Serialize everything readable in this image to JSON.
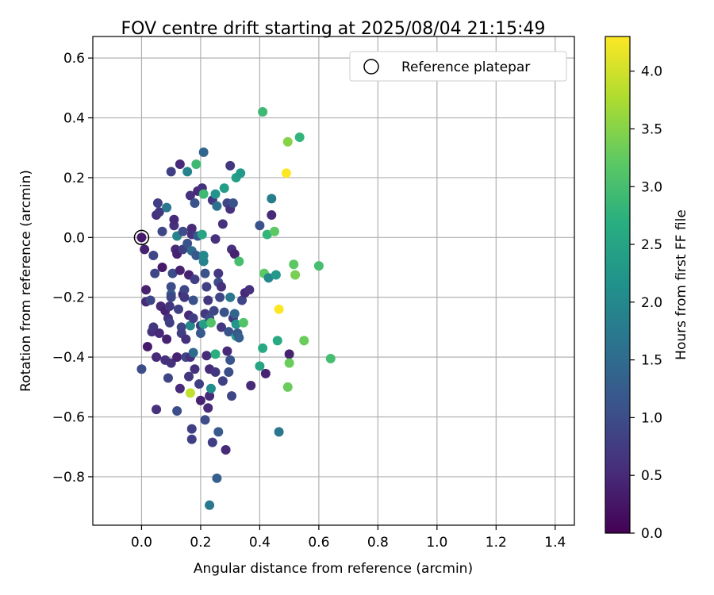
{
  "chart_data": {
    "type": "scatter",
    "title": "FOV centre drift starting at 2025/08/04 21:15:49",
    "xlabel": "Angular distance from reference (arcmin)",
    "ylabel": "Rotation from reference (arcmin)",
    "xlim": [
      -0.165,
      1.465
    ],
    "ylim": [
      -0.962,
      0.672
    ],
    "x_ticks": [
      0.0,
      0.2,
      0.4,
      0.6,
      0.8,
      1.0,
      1.2,
      1.4
    ],
    "x_tick_labels": [
      "0.0",
      "0.2",
      "0.4",
      "0.6",
      "0.8",
      "1.0",
      "1.2",
      "1.4"
    ],
    "y_ticks": [
      -0.8,
      -0.6,
      -0.4,
      -0.2,
      0.0,
      0.2,
      0.4,
      0.6
    ],
    "y_tick_labels": [
      "−0.8",
      "−0.6",
      "−0.4",
      "−0.2",
      "0.0",
      "0.2",
      "0.4",
      "0.6"
    ],
    "grid": true,
    "legend": {
      "position": "top-right",
      "entries": [
        "Reference platepar"
      ]
    },
    "colorbar": {
      "label": "Hours from first FF file",
      "range": [
        0.0,
        4.3
      ],
      "ticks": [
        0.0,
        0.5,
        1.0,
        1.5,
        2.0,
        2.5,
        3.0,
        3.5,
        4.0
      ],
      "tick_labels": [
        "0.0",
        "0.5",
        "1.0",
        "1.5",
        "2.0",
        "2.5",
        "3.0",
        "3.5",
        "4.0"
      ],
      "colormap": "viridis"
    },
    "reference_point": {
      "x": 0.0,
      "y": 0.0
    },
    "points": [
      [
        0.0,
        0.0,
        0.3
      ],
      [
        0.01,
        -0.04,
        0.4
      ],
      [
        0.0,
        -0.44,
        1.0
      ],
      [
        0.015,
        -0.175,
        0.4
      ],
      [
        0.015,
        -0.215,
        0.5
      ],
      [
        0.02,
        -0.365,
        0.3
      ],
      [
        0.03,
        -0.21,
        0.9
      ],
      [
        0.035,
        -0.315,
        0.6
      ],
      [
        0.04,
        -0.3,
        0.7
      ],
      [
        0.04,
        -0.06,
        0.9
      ],
      [
        0.045,
        -0.12,
        0.9
      ],
      [
        0.05,
        -0.4,
        0.5
      ],
      [
        0.05,
        -0.575,
        0.6
      ],
      [
        0.05,
        0.075,
        0.6
      ],
      [
        0.055,
        0.115,
        0.8
      ],
      [
        0.06,
        -0.32,
        0.5
      ],
      [
        0.06,
        0.085,
        0.7
      ],
      [
        0.065,
        -0.23,
        0.5
      ],
      [
        0.07,
        -0.1,
        0.3
      ],
      [
        0.07,
        0.02,
        0.9
      ],
      [
        0.08,
        -0.245,
        0.4
      ],
      [
        0.08,
        -0.41,
        0.6
      ],
      [
        0.085,
        -0.34,
        0.4
      ],
      [
        0.085,
        0.1,
        1.7
      ],
      [
        0.09,
        -0.47,
        0.9
      ],
      [
        0.09,
        -0.27,
        0.6
      ],
      [
        0.095,
        -0.285,
        0.8
      ],
      [
        0.095,
        -0.23,
        0.7
      ],
      [
        0.1,
        -0.165,
        1.0
      ],
      [
        0.1,
        -0.19,
        1.2
      ],
      [
        0.1,
        -0.2,
        0.9
      ],
      [
        0.1,
        -0.42,
        0.6
      ],
      [
        0.1,
        0.22,
        0.8
      ],
      [
        0.105,
        -0.12,
        1.0
      ],
      [
        0.11,
        0.04,
        0.6
      ],
      [
        0.11,
        0.06,
        0.5
      ],
      [
        0.115,
        -0.04,
        0.5
      ],
      [
        0.12,
        -0.055,
        0.4
      ],
      [
        0.12,
        -0.4,
        0.4
      ],
      [
        0.12,
        0.005,
        1.9
      ],
      [
        0.12,
        -0.58,
        1.0
      ],
      [
        0.125,
        -0.24,
        0.8
      ],
      [
        0.13,
        -0.11,
        0.4
      ],
      [
        0.13,
        -0.505,
        0.5
      ],
      [
        0.13,
        0.245,
        0.5
      ],
      [
        0.135,
        -0.3,
        0.9
      ],
      [
        0.135,
        -0.32,
        0.8
      ],
      [
        0.14,
        -0.04,
        0.8
      ],
      [
        0.14,
        -0.19,
        0.4
      ],
      [
        0.14,
        0.02,
        1.0
      ],
      [
        0.145,
        -0.175,
        0.9
      ],
      [
        0.145,
        -0.2,
        0.7
      ],
      [
        0.15,
        -0.34,
        0.6
      ],
      [
        0.15,
        -0.4,
        0.9
      ],
      [
        0.155,
        0.22,
        1.9
      ],
      [
        0.155,
        -0.02,
        1.1
      ],
      [
        0.16,
        -0.125,
        0.4
      ],
      [
        0.16,
        -0.26,
        0.5
      ],
      [
        0.16,
        -0.465,
        0.7
      ],
      [
        0.165,
        -0.52,
        3.9
      ],
      [
        0.165,
        -0.4,
        0.6
      ],
      [
        0.165,
        -0.295,
        2.0
      ],
      [
        0.165,
        0.14,
        0.6
      ],
      [
        0.17,
        -0.045,
        1.5
      ],
      [
        0.17,
        0.03,
        0.5
      ],
      [
        0.17,
        0.01,
        0.6
      ],
      [
        0.17,
        -0.64,
        0.8
      ],
      [
        0.17,
        -0.675,
        0.8
      ],
      [
        0.175,
        -0.21,
        1.1
      ],
      [
        0.175,
        -0.27,
        0.8
      ],
      [
        0.175,
        -0.385,
        1.5
      ],
      [
        0.18,
        -0.14,
        0.8
      ],
      [
        0.18,
        0.115,
        1.1
      ],
      [
        0.18,
        -0.44,
        0.6
      ],
      [
        0.185,
        -0.06,
        1.2
      ],
      [
        0.185,
        0.245,
        2.9
      ],
      [
        0.19,
        0.155,
        0.5
      ],
      [
        0.19,
        0.005,
        1.2
      ],
      [
        0.195,
        -0.49,
        0.8
      ],
      [
        0.2,
        -0.295,
        0.7
      ],
      [
        0.2,
        -0.32,
        1.2
      ],
      [
        0.2,
        -0.545,
        0.4
      ],
      [
        0.205,
        0.165,
        0.6
      ],
      [
        0.205,
        0.01,
        2.5
      ],
      [
        0.21,
        -0.08,
        1.9
      ],
      [
        0.21,
        -0.06,
        2.0
      ],
      [
        0.21,
        -0.29,
        2.4
      ],
      [
        0.21,
        0.285,
        1.4
      ],
      [
        0.21,
        0.145,
        2.9
      ],
      [
        0.215,
        -0.12,
        1.1
      ],
      [
        0.215,
        -0.255,
        0.7
      ],
      [
        0.215,
        -0.61,
        1.0
      ],
      [
        0.22,
        -0.165,
        0.8
      ],
      [
        0.22,
        -0.395,
        0.5
      ],
      [
        0.225,
        -0.21,
        0.7
      ],
      [
        0.225,
        -0.57,
        0.5
      ],
      [
        0.23,
        -0.895,
        1.7
      ],
      [
        0.23,
        -0.44,
        0.5
      ],
      [
        0.23,
        -0.53,
        0.5
      ],
      [
        0.23,
        -0.27,
        1.0
      ],
      [
        0.235,
        -0.285,
        3.1
      ],
      [
        0.235,
        -0.505,
        2.1
      ],
      [
        0.24,
        -0.685,
        0.8
      ],
      [
        0.24,
        0.125,
        0.7
      ],
      [
        0.245,
        -0.245,
        0.9
      ],
      [
        0.25,
        -0.39,
        2.7
      ],
      [
        0.25,
        -0.005,
        0.6
      ],
      [
        0.25,
        -0.45,
        0.7
      ],
      [
        0.25,
        0.145,
        2.2
      ],
      [
        0.255,
        0.105,
        1.6
      ],
      [
        0.255,
        -0.805,
        1.3
      ],
      [
        0.26,
        -0.12,
        0.7
      ],
      [
        0.26,
        -0.15,
        1.0
      ],
      [
        0.26,
        -0.65,
        1.2
      ],
      [
        0.265,
        -0.2,
        0.9
      ],
      [
        0.27,
        -0.165,
        0.6
      ],
      [
        0.27,
        -0.3,
        0.7
      ],
      [
        0.275,
        0.045,
        0.6
      ],
      [
        0.275,
        -0.48,
        0.8
      ],
      [
        0.28,
        -0.25,
        1.1
      ],
      [
        0.28,
        0.165,
        2.4
      ],
      [
        0.285,
        -0.71,
        0.5
      ],
      [
        0.29,
        0.115,
        0.9
      ],
      [
        0.29,
        -0.38,
        0.5
      ],
      [
        0.295,
        -0.45,
        1.0
      ],
      [
        0.295,
        -0.315,
        1.1
      ],
      [
        0.3,
        0.24,
        0.7
      ],
      [
        0.3,
        0.095,
        0.6
      ],
      [
        0.3,
        -0.41,
        1.1
      ],
      [
        0.3,
        -0.2,
        1.7
      ],
      [
        0.305,
        -0.04,
        0.6
      ],
      [
        0.305,
        -0.53,
        0.9
      ],
      [
        0.31,
        -0.27,
        0.7
      ],
      [
        0.31,
        0.115,
        1.1
      ],
      [
        0.315,
        -0.255,
        1.4
      ],
      [
        0.315,
        -0.055,
        0.4
      ],
      [
        0.32,
        -0.29,
        2.2
      ],
      [
        0.32,
        -0.33,
        2.4
      ],
      [
        0.32,
        0.2,
        2.4
      ],
      [
        0.325,
        -0.32,
        1.2
      ],
      [
        0.33,
        -0.335,
        1.3
      ],
      [
        0.33,
        -0.08,
        3.0
      ],
      [
        0.335,
        0.215,
        2.3
      ],
      [
        0.34,
        -0.21,
        0.9
      ],
      [
        0.345,
        -0.285,
        3.1
      ],
      [
        0.35,
        -0.185,
        0.5
      ],
      [
        0.365,
        -0.175,
        0.6
      ],
      [
        0.37,
        -0.495,
        0.5
      ],
      [
        0.4,
        0.04,
        1.1
      ],
      [
        0.4,
        -0.43,
        2.5
      ],
      [
        0.41,
        0.42,
        2.9
      ],
      [
        0.41,
        -0.37,
        2.6
      ],
      [
        0.415,
        -0.12,
        3.2
      ],
      [
        0.42,
        -0.455,
        0.4
      ],
      [
        0.425,
        0.01,
        2.8
      ],
      [
        0.43,
        -0.135,
        2.0
      ],
      [
        0.44,
        0.075,
        0.5
      ],
      [
        0.44,
        0.13,
        1.8
      ],
      [
        0.45,
        0.02,
        3.2
      ],
      [
        0.455,
        -0.125,
        2.3
      ],
      [
        0.46,
        -0.345,
        2.6
      ],
      [
        0.465,
        -0.24,
        4.3
      ],
      [
        0.465,
        -0.65,
        1.7
      ],
      [
        0.49,
        0.215,
        4.3
      ],
      [
        0.495,
        0.32,
        3.5
      ],
      [
        0.495,
        -0.5,
        3.3
      ],
      [
        0.5,
        -0.39,
        0.4
      ],
      [
        0.5,
        -0.42,
        3.3
      ],
      [
        0.515,
        -0.09,
        3.2
      ],
      [
        0.52,
        -0.125,
        3.4
      ],
      [
        0.535,
        0.335,
        2.8
      ],
      [
        0.55,
        -0.345,
        3.3
      ],
      [
        0.6,
        -0.095,
        3.0
      ],
      [
        0.64,
        -0.405,
        3.0
      ]
    ]
  }
}
